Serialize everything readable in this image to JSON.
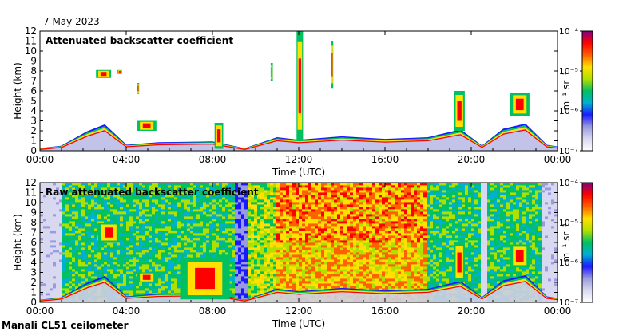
{
  "date": "7 May 2023",
  "footer": "Manali CL51 ceilometer",
  "colors": {
    "bg_low": "#d8d8f0",
    "cbar_top": "#800080"
  },
  "colormap": [
    "#ffffff",
    "#d8d8f0",
    "#9a9ae0",
    "#1a1aff",
    "#00b0d0",
    "#00c060",
    "#b0e000",
    "#ffe000",
    "#ff6000",
    "#ff0000",
    "#800080"
  ],
  "chart_data": [
    {
      "type": "heatmap",
      "title": "Attenuated backscatter coefficient",
      "xlabel": "Time (UTC)",
      "ylabel": "Height (km)",
      "xticks": [
        "00:00",
        "04:00",
        "08:00",
        "12:00",
        "16:00",
        "20:00",
        "00:00"
      ],
      "xlim_hours": [
        0,
        24
      ],
      "ylim": [
        0,
        12
      ],
      "yticks": [
        "0",
        "1",
        "2",
        "3",
        "4",
        "5",
        "6",
        "7",
        "8",
        "9",
        "10",
        "11",
        "12"
      ],
      "colorbar": {
        "label": "m⁻¹ sr⁻¹",
        "ticks": [
          "10⁻⁴",
          "10⁻⁵",
          "10⁻⁶",
          "10⁻⁷"
        ],
        "range_log10": [
          -7,
          -4
        ]
      },
      "noise": false,
      "features": [
        {
          "name": "boundary-layer",
          "hours": [
            0,
            1,
            2.2,
            3,
            4,
            5.5,
            8,
            9.5,
            11,
            12,
            14,
            16,
            18,
            19.5,
            20.5,
            21.5,
            22.5,
            23.5,
            24
          ],
          "top_km": [
            0.2,
            0.5,
            2.2,
            3.0,
            0.6,
            0.9,
            1.0,
            0.2,
            1.5,
            1.2,
            1.6,
            1.3,
            1.5,
            2.4,
            0.5,
            2.5,
            3.1,
            0.6,
            0.4
          ]
        },
        {
          "name": "cloud",
          "h0": 2.6,
          "h1": 3.3,
          "z0": 7.3,
          "z1": 8.1
        },
        {
          "name": "cloud",
          "h0": 3.6,
          "h1": 3.8,
          "z0": 7.7,
          "z1": 8.1
        },
        {
          "name": "cloud",
          "h0": 4.5,
          "h1": 4.6,
          "z0": 5.7,
          "z1": 6.8
        },
        {
          "name": "cloud",
          "h0": 4.5,
          "h1": 5.4,
          "z0": 2.0,
          "z1": 3.0
        },
        {
          "name": "cloud",
          "h0": 8.1,
          "h1": 8.5,
          "z0": 0.2,
          "z1": 2.8
        },
        {
          "name": "cloud",
          "h0": 10.7,
          "h1": 10.8,
          "z0": 7.0,
          "z1": 8.8
        },
        {
          "name": "cloud",
          "h0": 11.9,
          "h1": 12.2,
          "z0": 1.0,
          "z1": 12.0
        },
        {
          "name": "cloud",
          "h0": 13.5,
          "h1": 13.6,
          "z0": 6.3,
          "z1": 11.0
        },
        {
          "name": "cloud",
          "h0": 19.2,
          "h1": 19.7,
          "z0": 2.0,
          "z1": 6.0
        },
        {
          "name": "cloud",
          "h0": 21.8,
          "h1": 22.7,
          "z0": 3.5,
          "z1": 5.8
        }
      ]
    },
    {
      "type": "heatmap",
      "title": "Raw attenuated backscatter coefficient",
      "xlabel": "Time (UTC)",
      "ylabel": "Height (km)",
      "xticks": [
        "00:00",
        "04:00",
        "08:00",
        "12:00",
        "16:00",
        "20:00",
        "00:00"
      ],
      "xlim_hours": [
        0,
        24
      ],
      "ylim": [
        0,
        12
      ],
      "yticks": [
        "0",
        "1",
        "2",
        "3",
        "4",
        "5",
        "6",
        "7",
        "8",
        "9",
        "10",
        "11",
        "12"
      ],
      "colorbar": {
        "label": "m⁻¹ sr⁻¹",
        "ticks": [
          "10⁻⁴",
          "10⁻⁵",
          "10⁻⁶",
          "10⁻⁷"
        ],
        "range_log10": [
          -7,
          -4
        ]
      },
      "noise": true,
      "features": [
        {
          "name": "boundary-layer",
          "hours": [
            0,
            1,
            2.2,
            3,
            4,
            5.5,
            8,
            9.5,
            11,
            12,
            14,
            16,
            18,
            19.5,
            20.5,
            21.5,
            22.5,
            23.5,
            24
          ],
          "top_km": [
            0.2,
            0.5,
            2.2,
            3.0,
            0.6,
            0.9,
            1.0,
            0.2,
            1.5,
            1.2,
            1.6,
            1.3,
            1.5,
            2.4,
            0.5,
            2.5,
            3.1,
            0.6,
            0.4
          ]
        },
        {
          "name": "cloud",
          "h0": 2.7,
          "h1": 3.7,
          "z0": 6.0,
          "z1": 8.0
        },
        {
          "name": "cloud",
          "h0": 4.5,
          "h1": 5.4,
          "z0": 2.0,
          "z1": 3.0
        },
        {
          "name": "cloud",
          "h0": 6.5,
          "h1": 8.8,
          "z0": 0.3,
          "z1": 4.5
        },
        {
          "name": "cloud",
          "h0": 19.2,
          "h1": 19.7,
          "z0": 2.0,
          "z1": 6.0
        },
        {
          "name": "cloud",
          "h0": 21.8,
          "h1": 22.7,
          "z0": 3.5,
          "z1": 5.8
        }
      ]
    }
  ]
}
